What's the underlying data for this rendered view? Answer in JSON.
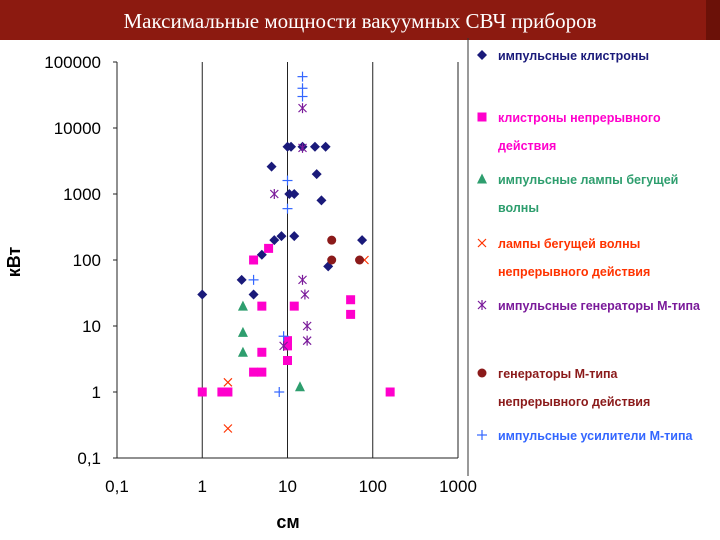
{
  "slide_title": "Максимальные мощности вакуумных СВЧ приборов",
  "colors": {
    "title_bg": "#8c1a10",
    "title_text": "#ffffff"
  },
  "chart_data": {
    "type": "scatter",
    "title": "Максимальные мощности вакуумных СВЧ приборов",
    "xlabel": "см",
    "ylabel": "кВт",
    "xscale": "log",
    "yscale": "log",
    "xlim": [
      0.1,
      1000
    ],
    "ylim": [
      0.1,
      100000
    ],
    "x_ticks": [
      "0,1",
      "1",
      "10",
      "100",
      "1000"
    ],
    "y_ticks": [
      "0,1",
      "1",
      "10",
      "100",
      "1000",
      "10000",
      "100000"
    ],
    "grid": "vertical",
    "legend_position": "right",
    "series": [
      {
        "name": "импульсные клистроны",
        "label_lines": [
          "импульсные клистроны"
        ],
        "marker": "diamond",
        "color": "#1a1a7a",
        "points": [
          [
            1,
            30
          ],
          [
            2.9,
            50
          ],
          [
            4,
            30
          ],
          [
            5,
            120
          ],
          [
            6.5,
            2600
          ],
          [
            7,
            200
          ],
          [
            8.5,
            230
          ],
          [
            10,
            5200
          ],
          [
            11,
            5200
          ],
          [
            10.5,
            1000
          ],
          [
            12,
            1000
          ],
          [
            12,
            230
          ],
          [
            15,
            5200
          ],
          [
            21,
            5200
          ],
          [
            28,
            5200
          ],
          [
            22,
            2000
          ],
          [
            25,
            800
          ],
          [
            30,
            80
          ],
          [
            75,
            200
          ]
        ]
      },
      {
        "name": "клистроны непрерывного действия",
        "label_lines": [
          "клистроны непрерывного",
          "действия"
        ],
        "marker": "square",
        "color": "#ff00cc",
        "points": [
          [
            1,
            1
          ],
          [
            1.7,
            1
          ],
          [
            2,
            1
          ],
          [
            4,
            2
          ],
          [
            5,
            2
          ],
          [
            5,
            4
          ],
          [
            5,
            20
          ],
          [
            4,
            100
          ],
          [
            6,
            150
          ],
          [
            10,
            6
          ],
          [
            10,
            5
          ],
          [
            10,
            3
          ],
          [
            12,
            20
          ],
          [
            55,
            25
          ],
          [
            55,
            15
          ],
          [
            160,
            1
          ]
        ]
      },
      {
        "name": "импульсные лампы бегущей волны",
        "label_lines": [
          "импульсные лампы бегущей",
          "волны"
        ],
        "marker": "triangle",
        "color": "#2e9e6e",
        "points": [
          [
            3,
            20
          ],
          [
            3,
            8
          ],
          [
            3,
            4
          ],
          [
            14,
            1.2
          ]
        ]
      },
      {
        "name": "лампы бегущей волны непрерывного действия",
        "label_lines": [
          "лампы бегущей волны",
          "непрерывного действия"
        ],
        "marker": "x",
        "color": "#ff3300",
        "points": [
          [
            2,
            1.4
          ],
          [
            2,
            0.28
          ],
          [
            80,
            100
          ]
        ]
      },
      {
        "name": "импульсные генераторы М-типа",
        "label_lines": [
          "импульсные генераторы М-типа"
        ],
        "marker": "asterisk",
        "color": "#7a1a9a",
        "points": [
          [
            7,
            1000
          ],
          [
            15,
            20000
          ],
          [
            15,
            5000
          ],
          [
            15,
            50
          ],
          [
            16,
            30
          ],
          [
            17,
            10
          ],
          [
            17,
            6
          ],
          [
            9,
            5
          ]
        ]
      },
      {
        "name": "генераторы М-типа непрерывного действия",
        "label_lines": [
          "генераторы М-типа",
          "непрерывного действия"
        ],
        "marker": "circle",
        "color": "#8b1a1a",
        "points": [
          [
            33,
            200
          ],
          [
            33,
            100
          ],
          [
            70,
            100
          ]
        ]
      },
      {
        "name": "импульсные усилители М-типа",
        "label_lines": [
          "импульсные усилители М-типа"
        ],
        "marker": "plus",
        "color": "#3366ff",
        "points": [
          [
            15,
            60000
          ],
          [
            15,
            40000
          ],
          [
            15,
            30000
          ],
          [
            10,
            1600
          ],
          [
            10,
            600
          ],
          [
            4,
            50
          ],
          [
            9,
            7
          ],
          [
            8,
            1
          ]
        ]
      }
    ]
  }
}
